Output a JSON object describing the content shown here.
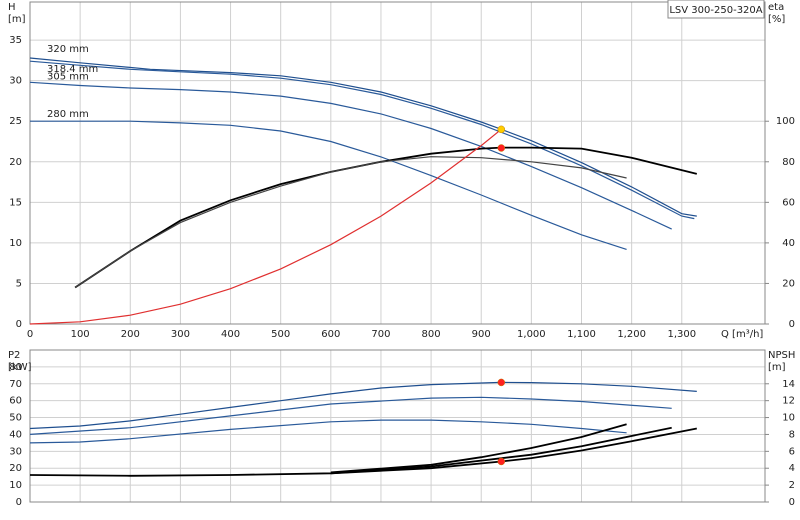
{
  "chart_data": [
    {
      "type": "line",
      "title": "LSV 300-250-320A",
      "ylabel": "H",
      "yunit": "[m]",
      "y2label": "eta",
      "y2unit": "[%]",
      "xlabel": "Q [m³/h]",
      "xlim": [
        0,
        1466
      ],
      "ylim": [
        0,
        39.7
      ],
      "y2lim": [
        0,
        158.8
      ],
      "xticks": [
        0,
        100,
        200,
        300,
        400,
        500,
        600,
        700,
        800,
        900,
        {
          "value": 1000,
          "label": "1,000"
        },
        {
          "value": 1100,
          "label": "1,100"
        },
        {
          "value": 1200,
          "label": "1,200"
        },
        {
          "value": 1300,
          "label": "1,300"
        }
      ],
      "yticks": [
        0,
        5,
        10,
        15,
        20,
        25,
        30,
        35
      ],
      "y2ticks": [
        0,
        20,
        40,
        60,
        80,
        100
      ],
      "grid": true,
      "series": [
        {
          "name": "320 mm",
          "color": "#1f4f8f",
          "x": [
            0,
            100,
            240,
            400,
            500,
            600,
            700,
            800,
            900,
            940,
            1000,
            1100,
            1200,
            1300,
            1330
          ],
          "values": [
            32.8,
            32.2,
            31.4,
            31.0,
            30.6,
            29.8,
            28.6,
            26.9,
            24.9,
            24.0,
            22.6,
            19.9,
            16.9,
            13.6,
            13.3
          ]
        },
        {
          "name": "318.4 mm",
          "color": "#2a5a9a",
          "x": [
            0,
            100,
            200,
            300,
            400,
            500,
            600,
            700,
            800,
            900,
            1000,
            1100,
            1200,
            1300,
            1325
          ],
          "values": [
            32.4,
            31.9,
            31.4,
            31.1,
            30.8,
            30.3,
            29.5,
            28.3,
            26.6,
            24.6,
            22.2,
            19.5,
            16.5,
            13.3,
            13.0
          ]
        },
        {
          "name": "305 mm",
          "color": "#2a5a9a",
          "x": [
            0,
            100,
            200,
            300,
            400,
            500,
            600,
            700,
            800,
            900,
            1000,
            1100,
            1200,
            1280
          ],
          "values": [
            29.8,
            29.4,
            29.1,
            28.9,
            28.6,
            28.1,
            27.2,
            25.9,
            24.1,
            21.9,
            19.4,
            16.8,
            14.0,
            11.7
          ]
        },
        {
          "name": "280 mm",
          "color": "#2a5a9a",
          "x": [
            0,
            100,
            200,
            300,
            400,
            500,
            600,
            700,
            800,
            900,
            1000,
            1100,
            1190
          ],
          "values": [
            25.0,
            25.0,
            25.0,
            24.8,
            24.5,
            23.8,
            22.5,
            20.6,
            18.3,
            15.9,
            13.4,
            11.0,
            9.2
          ]
        },
        {
          "axis": "y2",
          "color": "#000000",
          "x": [
            90,
            200,
            300,
            400,
            500,
            600,
            700,
            800,
            900,
            940,
            1000,
            1100,
            1200,
            1330
          ],
          "values": [
            18,
            36,
            51,
            61,
            69,
            75,
            80,
            84,
            86.5,
            87,
            87,
            86.5,
            82,
            74
          ]
        },
        {
          "axis": "y2",
          "color": "#444444",
          "x": [
            90,
            200,
            300,
            400,
            500,
            600,
            700,
            800,
            900,
            1000,
            1100,
            1190
          ],
          "values": [
            18,
            36,
            50,
            60,
            68,
            75,
            80,
            82.5,
            82,
            80,
            77,
            72
          ]
        },
        {
          "color": "#e03030",
          "x": [
            0,
            100,
            200,
            300,
            400,
            500,
            600,
            700,
            800,
            900,
            940
          ],
          "values": [
            0,
            0.27,
            1.09,
            2.44,
            4.35,
            6.79,
            9.78,
            13.3,
            17.4,
            22.0,
            24.0
          ]
        }
      ],
      "points": [
        {
          "x": 940,
          "y": 24.0,
          "color": "#ffcc00"
        },
        {
          "x": 940,
          "y": 86.8,
          "axis": "y2",
          "color": "#ff2020"
        }
      ]
    },
    {
      "type": "line",
      "ylabel": "P2",
      "yunit": "[kW]",
      "y2label": "NPSH",
      "y2unit": "[m]",
      "xlim": [
        0,
        1466
      ],
      "ylim": [
        0,
        90
      ],
      "y2lim": [
        0,
        18
      ],
      "xticks": [
        0,
        100,
        200,
        300,
        400,
        500,
        600,
        700,
        800,
        900,
        1000,
        1100,
        1200,
        1300
      ],
      "xtick_labels": false,
      "yticks": [
        0,
        10,
        20,
        30,
        40,
        50,
        60,
        70,
        80
      ],
      "y2ticks": [
        0,
        2,
        4,
        6,
        8,
        10,
        12,
        14
      ],
      "grid": true,
      "series": [
        {
          "color": "#1f4f8f",
          "x": [
            0,
            100,
            200,
            300,
            400,
            500,
            600,
            700,
            800,
            940,
            1000,
            1100,
            1200,
            1330
          ],
          "values": [
            43.5,
            45,
            48,
            52,
            56,
            60,
            64,
            67.5,
            69.5,
            70.8,
            70.7,
            70,
            68.5,
            65.5
          ]
        },
        {
          "color": "#2a5a9a",
          "x": [
            0,
            200,
            400,
            600,
            800,
            900,
            1000,
            1100,
            1280
          ],
          "values": [
            40,
            44,
            51,
            58,
            61.5,
            62,
            61,
            59.5,
            55.5
          ]
        },
        {
          "color": "#2a5a9a",
          "x": [
            0,
            100,
            200,
            400,
            600,
            700,
            800,
            900,
            1000,
            1100,
            1190
          ],
          "values": [
            35,
            35.5,
            37.5,
            43,
            47.5,
            48.5,
            48.5,
            47.5,
            46,
            43.5,
            41
          ]
        },
        {
          "axis": "y2",
          "color": "#000000",
          "x": [
            0,
            200,
            400,
            600,
            800,
            940,
            1000,
            1100,
            1200,
            1330
          ],
          "values": [
            3.2,
            3.1,
            3.2,
            3.4,
            4.0,
            4.8,
            5.2,
            6.1,
            7.2,
            8.7
          ]
        },
        {
          "axis": "y2",
          "color": "#000000",
          "x": [
            600,
            800,
            900,
            1000,
            1100,
            1190
          ],
          "values": [
            3.5,
            4.4,
            5.3,
            6.4,
            7.7,
            9.2
          ]
        },
        {
          "axis": "y2",
          "color": "#000000",
          "x": [
            600,
            800,
            1000,
            1100,
            1280
          ],
          "values": [
            3.4,
            4.2,
            5.6,
            6.6,
            8.8
          ]
        }
      ],
      "points": [
        {
          "x": 940,
          "y": 70.8,
          "color": "#ff2020"
        },
        {
          "x": 940,
          "y": 4.8,
          "axis": "y2",
          "color": "#ff2020"
        }
      ]
    }
  ]
}
